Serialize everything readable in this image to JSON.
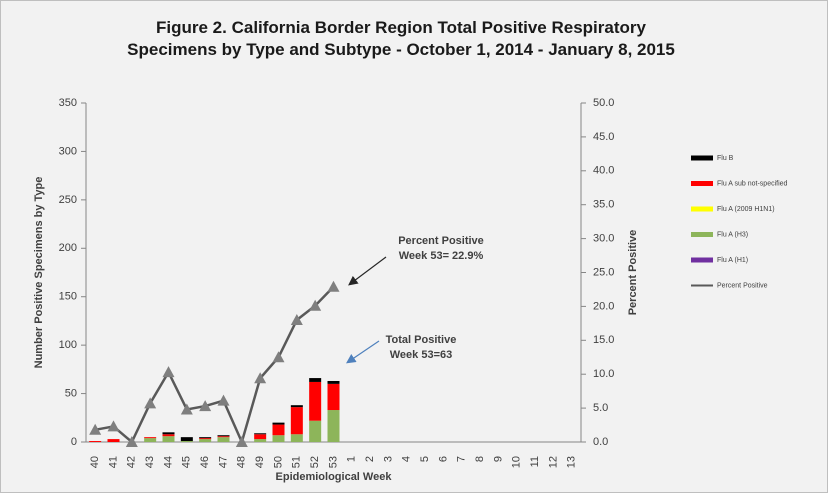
{
  "chart_data": {
    "type": "bar",
    "stacked": true,
    "title": "Figure 2. California Border Region Total Positive Respiratory Specimens by Type and Subtype - October 1, 2014 - January 8, 2015",
    "y_label": "Number Positive Specimens by Type",
    "y2_label": "Percent Positive",
    "x_label": "Epidemiological Week",
    "categories": [
      "40",
      "41",
      "42",
      "43",
      "44",
      "45",
      "46",
      "47",
      "48",
      "49",
      "50",
      "51",
      "52",
      "53",
      "1",
      "2",
      "3",
      "4",
      "5",
      "6",
      "7",
      "8",
      "9",
      "10",
      "11",
      "12",
      "13"
    ],
    "ylim": [
      0,
      350
    ],
    "yticks": [
      0,
      50,
      100,
      150,
      200,
      250,
      300,
      350
    ],
    "y2lim": [
      0,
      50
    ],
    "y2ticks": [
      {
        "value": 0,
        "label": "0.0"
      },
      {
        "value": 5,
        "label": "5.0"
      },
      {
        "value": 10,
        "label": "10.0"
      },
      {
        "value": 15,
        "label": "15.0"
      },
      {
        "value": 20,
        "label": "20.0"
      },
      {
        "value": 25,
        "label": "25.0"
      },
      {
        "value": 30,
        "label": "30.0"
      },
      {
        "value": 35,
        "label": "35.0"
      },
      {
        "value": 40,
        "label": "40.0"
      },
      {
        "value": 45,
        "label": "45.0"
      },
      {
        "value": 50,
        "label": "50.0"
      }
    ],
    "series": [
      {
        "name": "Flu B",
        "color": "#000000",
        "values": [
          0,
          0,
          0,
          0,
          2,
          4,
          1,
          1,
          0,
          1,
          2,
          2,
          4,
          3,
          null,
          null,
          null,
          null,
          null,
          null,
          null,
          null,
          null,
          null,
          null,
          null,
          null
        ]
      },
      {
        "name": "Flu A sub not-specified",
        "color": "#ff0000",
        "values": [
          1,
          3,
          0,
          1,
          2,
          0,
          1,
          1,
          0,
          5,
          11,
          28,
          40,
          27,
          null,
          null,
          null,
          null,
          null,
          null,
          null,
          null,
          null,
          null,
          null,
          null,
          null
        ]
      },
      {
        "name": "Flu A (2009 H1N1)",
        "color": "#ffff00",
        "values": [
          0,
          0,
          0,
          0,
          0,
          0,
          0,
          0,
          0,
          0,
          0,
          0,
          0,
          0,
          null,
          null,
          null,
          null,
          null,
          null,
          null,
          null,
          null,
          null,
          null,
          null,
          null
        ]
      },
      {
        "name": "Flu A (H3)",
        "color": "#8db55a",
        "values": [
          0,
          0,
          0,
          4,
          6,
          1,
          3,
          5,
          0,
          3,
          7,
          8,
          22,
          33,
          null,
          null,
          null,
          null,
          null,
          null,
          null,
          null,
          null,
          null,
          null,
          null,
          null
        ]
      },
      {
        "name": "Flu A (H1)",
        "color": "#7030a0",
        "values": [
          0,
          0,
          0,
          0,
          0,
          0,
          0,
          0,
          0,
          0,
          0,
          0,
          0,
          0,
          null,
          null,
          null,
          null,
          null,
          null,
          null,
          null,
          null,
          null,
          null,
          null,
          null
        ]
      },
      {
        "name": "Percent Positive",
        "type": "line",
        "axis": "y2",
        "color": "#595959",
        "values": [
          1.8,
          2.3,
          0,
          5.7,
          10.3,
          4.8,
          5.3,
          6.1,
          0,
          9.4,
          12.5,
          18,
          20.1,
          22.9,
          null,
          null,
          null,
          null,
          null,
          null,
          null,
          null,
          null,
          null,
          null,
          null,
          null
        ]
      }
    ],
    "annotations": [
      {
        "text": [
          "Percent Positive",
          "Week 53= 22.9%"
        ],
        "color": "#262626"
      },
      {
        "text": [
          "Total Positive",
          "Week 53=63"
        ],
        "color": "#4f81bd"
      }
    ]
  }
}
